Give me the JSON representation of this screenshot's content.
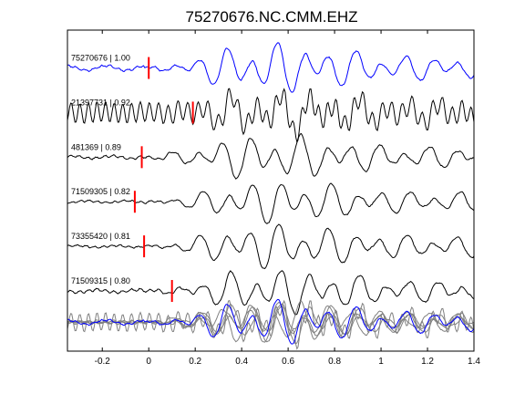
{
  "chart_data": {
    "type": "line",
    "title": "75270676.NC.CMM.EHZ",
    "xlabel": "",
    "ylabel": "",
    "xlim": [
      -0.35,
      1.4
    ],
    "xticks": [
      -0.2,
      0,
      0.2,
      0.4,
      0.6,
      0.8,
      1,
      1.2,
      1.4
    ],
    "xtick_labels": [
      "-0.2",
      "0",
      "0.2",
      "0.4",
      "0.6",
      "0.8",
      "1",
      "1.2",
      "1.4"
    ],
    "grid": false,
    "legend": "none",
    "traces": [
      {
        "label": "75270676 | 1.00",
        "event_id": "75270676",
        "correlation": 1.0,
        "pick_time": 0.0,
        "color": "#0000ff",
        "seed": 11,
        "noise": 0.04,
        "onset_amp": 0.35,
        "amp_scale": 1.0,
        "delay": 0.0
      },
      {
        "label": "21397731 | 0.92",
        "event_id": "21397731",
        "correlation": 0.92,
        "pick_time": 0.19,
        "color": "#000000",
        "seed": 23,
        "noise": 0.55,
        "onset_amp": 0.15,
        "amp_scale": 0.8,
        "delay": 0.02
      },
      {
        "label": "481369 | 0.89",
        "event_id": "481369",
        "correlation": 0.89,
        "pick_time": -0.03,
        "color": "#000000",
        "seed": 37,
        "noise": 0.05,
        "onset_amp": 0.2,
        "amp_scale": 0.9,
        "delay": -0.01
      },
      {
        "label": "71509305 | 0.82",
        "event_id": "71509305",
        "correlation": 0.82,
        "pick_time": -0.06,
        "color": "#000000",
        "seed": 41,
        "noise": 0.04,
        "onset_amp": 0.15,
        "amp_scale": 0.85,
        "delay": 0.01
      },
      {
        "label": "73355420 | 0.81",
        "event_id": "73355420",
        "correlation": 0.81,
        "pick_time": -0.02,
        "color": "#000000",
        "seed": 53,
        "noise": 0.04,
        "onset_amp": 0.15,
        "amp_scale": 0.9,
        "delay": 0.0
      },
      {
        "label": "71509315 | 0.80",
        "event_id": "71509315",
        "correlation": 0.8,
        "pick_time": 0.1,
        "color": "#000000",
        "seed": 67,
        "noise": 0.06,
        "onset_amp": 0.2,
        "amp_scale": 0.9,
        "delay": 0.02
      }
    ],
    "stack": {
      "colors": [
        "#808080",
        "#0000ff"
      ]
    },
    "pick_color": "#ff0000",
    "axis_color": "#000000"
  }
}
